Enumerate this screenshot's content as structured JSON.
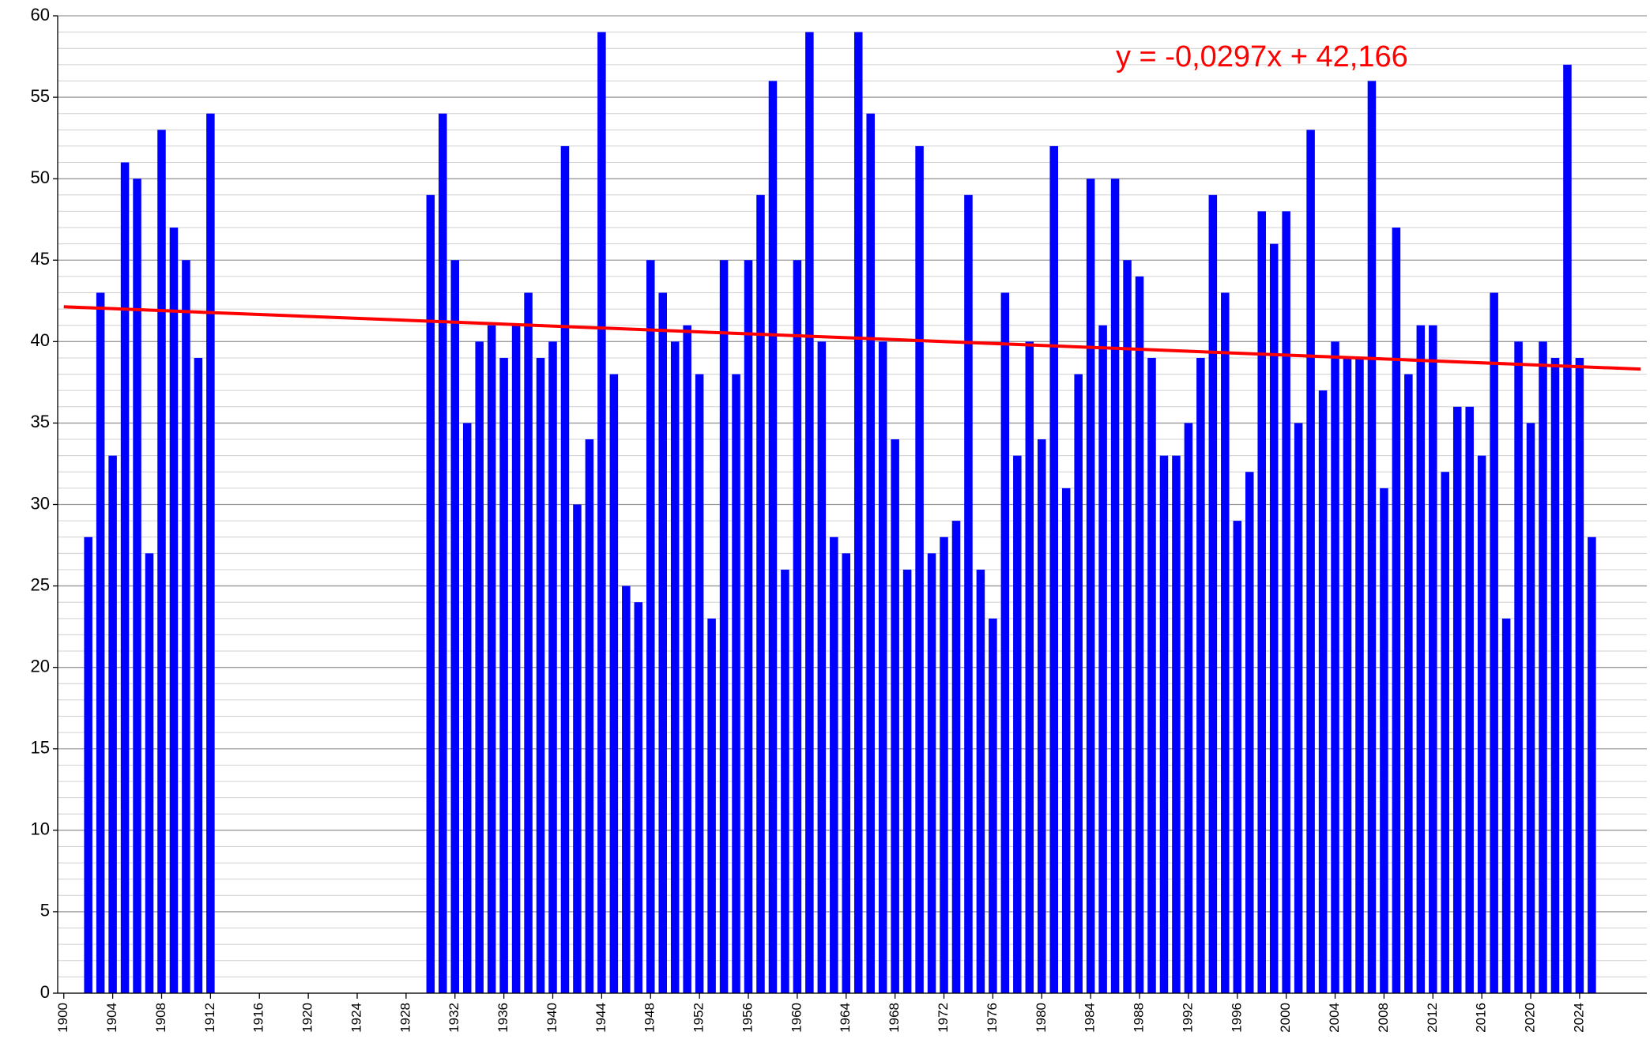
{
  "chart_data": {
    "type": "bar",
    "x": [
      1902,
      1903,
      1904,
      1905,
      1906,
      1907,
      1908,
      1909,
      1910,
      1911,
      1912,
      1930,
      1931,
      1932,
      1933,
      1934,
      1935,
      1936,
      1937,
      1938,
      1939,
      1940,
      1941,
      1942,
      1943,
      1944,
      1945,
      1946,
      1947,
      1948,
      1949,
      1950,
      1951,
      1952,
      1953,
      1954,
      1955,
      1956,
      1957,
      1958,
      1959,
      1960,
      1961,
      1962,
      1963,
      1964,
      1965,
      1966,
      1967,
      1968,
      1969,
      1970,
      1971,
      1972,
      1973,
      1974,
      1975,
      1976,
      1977,
      1978,
      1979,
      1980,
      1981,
      1982,
      1983,
      1984,
      1985,
      1986,
      1987,
      1988,
      1989,
      1990,
      1991,
      1992,
      1993,
      1994,
      1995,
      1996,
      1997,
      1998,
      1999,
      2000,
      2001,
      2002,
      2003,
      2004,
      2005,
      2006,
      2007,
      2008,
      2009,
      2010,
      2011,
      2012,
      2013,
      2014,
      2015,
      2016,
      2017,
      2018,
      2019,
      2020,
      2021,
      2022,
      2023,
      2024,
      2025
    ],
    "values": [
      28,
      43,
      33,
      51,
      50,
      27,
      53,
      47,
      45,
      39,
      54,
      49,
      54,
      45,
      35,
      40,
      41,
      39,
      41,
      43,
      39,
      40,
      52,
      30,
      34,
      59,
      38,
      25,
      24,
      45,
      43,
      40,
      41,
      38,
      23,
      45,
      38,
      45,
      49,
      56,
      26,
      45,
      59,
      40,
      28,
      27,
      59,
      54,
      40,
      34,
      26,
      52,
      27,
      28,
      29,
      49,
      26,
      23,
      43,
      33,
      40,
      34,
      52,
      31,
      38,
      50,
      41,
      50,
      45,
      44,
      39,
      33,
      33,
      35,
      39,
      49,
      43,
      29,
      32,
      48,
      46,
      48,
      35,
      53,
      37,
      40,
      39,
      39,
      56,
      31,
      47,
      38,
      41,
      41,
      32,
      36,
      36,
      33,
      43,
      23,
      40,
      35,
      40,
      39,
      57,
      39,
      28
    ],
    "color": "#0000ff",
    "xlim": [
      1899.5,
      2029.5
    ],
    "xticks": [
      1900,
      1904,
      1908,
      1912,
      1916,
      1920,
      1924,
      1928,
      1932,
      1936,
      1940,
      1944,
      1948,
      1952,
      1956,
      1960,
      1964,
      1968,
      1972,
      1976,
      1980,
      1984,
      1988,
      1992,
      1996,
      2000,
      2004,
      2008,
      2012,
      2016,
      2020,
      2024
    ],
    "ylim": [
      0,
      60
    ],
    "yticks": [
      0,
      5,
      10,
      15,
      20,
      25,
      30,
      35,
      40,
      45,
      50,
      55,
      60
    ],
    "minor_yticks": [
      1,
      2,
      3,
      4,
      6,
      7,
      8,
      9,
      11,
      12,
      13,
      14,
      16,
      17,
      18,
      19,
      21,
      22,
      23,
      24,
      26,
      27,
      28,
      29,
      31,
      32,
      33,
      34,
      36,
      37,
      38,
      39,
      41,
      42,
      43,
      44,
      46,
      47,
      48,
      49,
      51,
      52,
      53,
      54,
      56,
      57,
      58,
      59
    ],
    "grid": true,
    "trend": {
      "label": "y = -0,0297x + 42,166",
      "x": [
        1900,
        2029
      ],
      "values": [
        42.14,
        38.31
      ],
      "color": "#ff0000"
    }
  }
}
